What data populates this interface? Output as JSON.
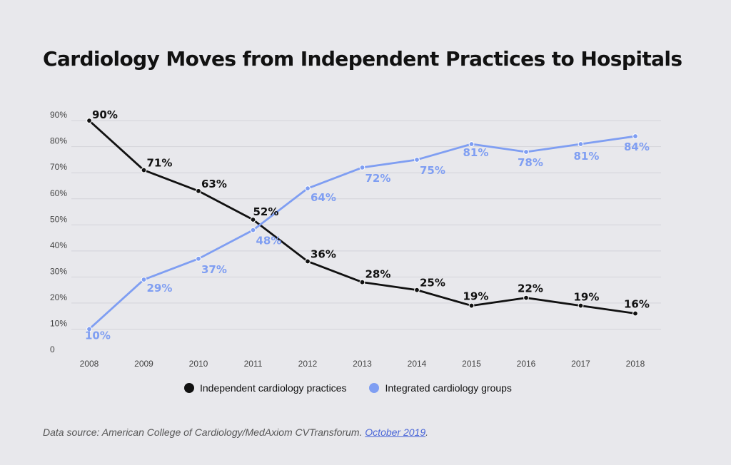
{
  "chart_data": {
    "type": "line",
    "title": "Cardiology Moves from Independent Practices to Hospitals",
    "x": [
      "2008",
      "2009",
      "2010",
      "2011",
      "2012",
      "2013",
      "2014",
      "2015",
      "2016",
      "2017",
      "2018"
    ],
    "y_ticks": [
      "0",
      "10%",
      "20%",
      "30%",
      "40%",
      "50%",
      "60%",
      "70%",
      "80%",
      "90%"
    ],
    "ylim": [
      0,
      90
    ],
    "grid": true,
    "legend_position": "bottom",
    "series": [
      {
        "name": "Independent cardiology practices",
        "color": "#111111",
        "values": [
          90,
          71,
          63,
          52,
          36,
          28,
          25,
          19,
          22,
          19,
          16
        ],
        "labels": [
          "90%",
          "71%",
          "63%",
          "52%",
          "36%",
          "28%",
          "25%",
          "19%",
          "22%",
          "19%",
          "16%"
        ]
      },
      {
        "name": "Integrated cardiology groups",
        "color": "#7f9ef2",
        "values": [
          10,
          29,
          37,
          48,
          64,
          72,
          75,
          81,
          78,
          81,
          84
        ],
        "labels": [
          "10%",
          "29%",
          "37%",
          "48%",
          "64%",
          "72%",
          "75%",
          "81%",
          "78%",
          "81%",
          "84%"
        ]
      }
    ]
  },
  "source": {
    "prefix": "Data source: American College of Cardiology/MedAxiom CVTransforum. ",
    "link": "October 2019",
    "suffix": "."
  }
}
